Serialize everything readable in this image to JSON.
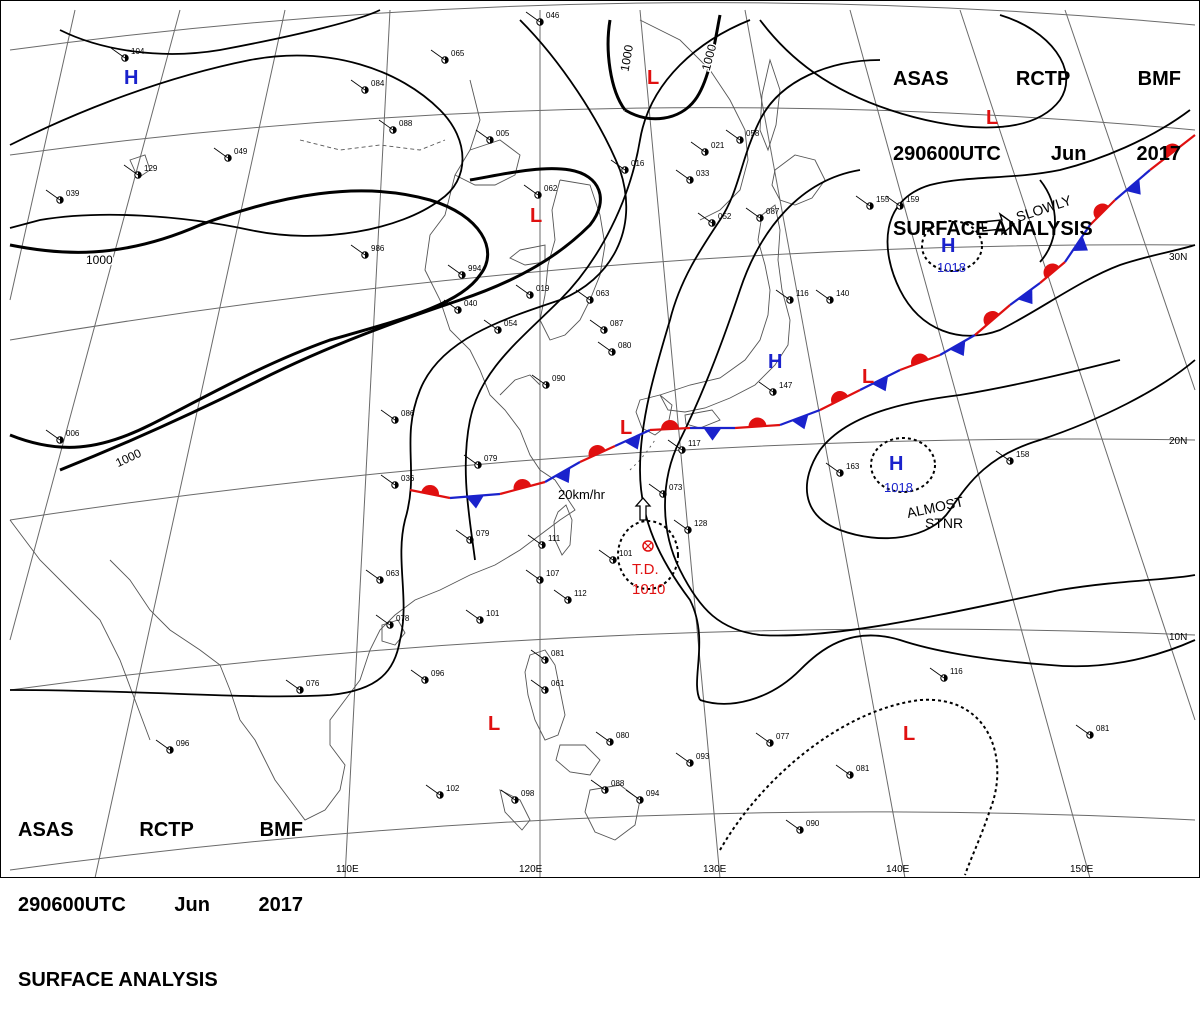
{
  "header": {
    "agency": "ASAS",
    "station": "RCTP",
    "office": "BMF",
    "datetime": "290600UTC",
    "month": "Jun",
    "year": "2017",
    "product": "SURFACE ANALYSIS"
  },
  "latitude_labels": [
    "30N",
    "20N",
    "10N"
  ],
  "longitude_labels": [
    "110E",
    "120E",
    "130E",
    "140E",
    "150E"
  ],
  "isobar_labels": [
    "1000",
    "1000",
    "1000",
    "1000"
  ],
  "pressure_centers": [
    {
      "type": "H",
      "value": "",
      "color": "#1a22cc"
    },
    {
      "type": "L",
      "value": "",
      "color": "#e01010"
    },
    {
      "type": "L",
      "value": "",
      "color": "#e01010"
    },
    {
      "type": "L",
      "value": "",
      "color": "#e01010"
    },
    {
      "type": "H",
      "value": "",
      "color": "#1a22cc"
    },
    {
      "type": "L",
      "value": "",
      "color": "#e01010"
    },
    {
      "type": "L",
      "value": "",
      "color": "#e01010"
    },
    {
      "type": "H",
      "value": "1018",
      "color": "#1a22cc"
    },
    {
      "type": "H",
      "value": "1018",
      "color": "#1a22cc"
    },
    {
      "type": "L",
      "value": "",
      "color": "#e01010"
    }
  ],
  "tropical_depression": {
    "label": "T.D.",
    "pressure": "1010",
    "color": "#e01010"
  },
  "movement_annotations": {
    "td_speed": "20km/hr",
    "high_east": "SLOWLY",
    "high_south_line1": "ALMOST",
    "high_south_line2": "STNR"
  },
  "front": {
    "type": "stationary",
    "warm_color": "#e01010",
    "cold_color": "#1a22cc"
  },
  "station_values": [
    "104",
    "129",
    "039",
    "049",
    "986",
    "084",
    "088",
    "065",
    "046",
    "005",
    "062",
    "016",
    "021",
    "058",
    "033",
    "052",
    "087",
    "994",
    "019",
    "040",
    "054",
    "063",
    "087",
    "090",
    "080",
    "006",
    "086",
    "036",
    "079",
    "073",
    "117",
    "111",
    "107",
    "101",
    "112",
    "128",
    "078",
    "101",
    "063",
    "079",
    "081",
    "061",
    "076",
    "096",
    "096",
    "102",
    "098",
    "088",
    "094",
    "093",
    "080",
    "077",
    "081",
    "090",
    "116",
    "163",
    "158",
    "147",
    "140",
    "155",
    "159",
    "116",
    "081"
  ]
}
